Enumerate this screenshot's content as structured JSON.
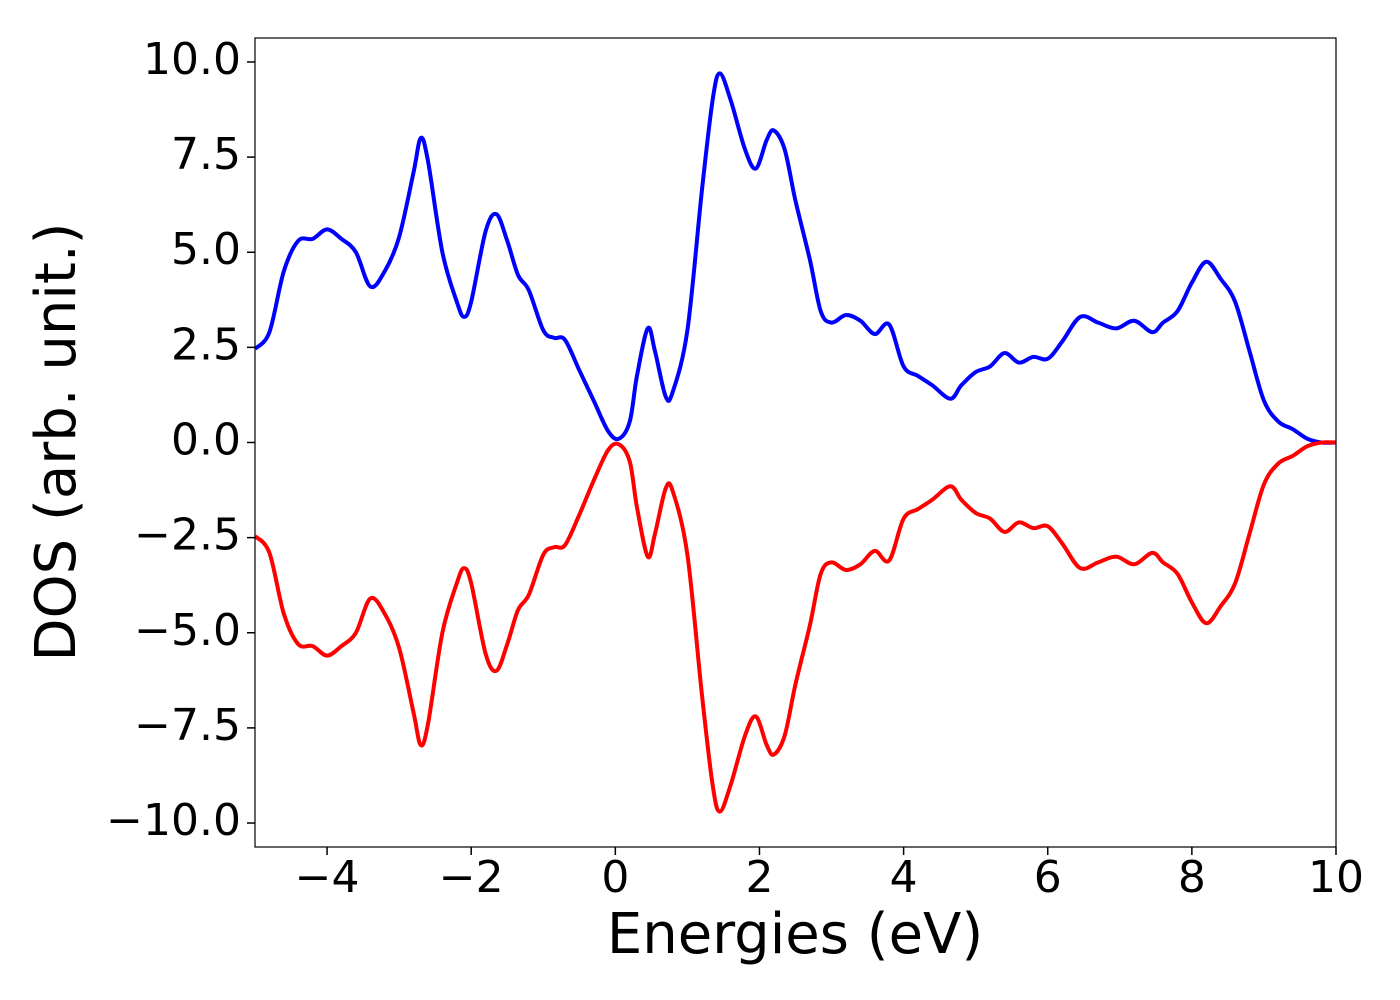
{
  "chart_data": {
    "type": "line",
    "xlabel": "Energies (eV)",
    "ylabel": "DOS (arb. unit.)",
    "x": [
      -5,
      -4.8,
      -4.6,
      -4.4,
      -4.2,
      -4.0,
      -3.8,
      -3.6,
      -3.4,
      -3.2,
      -3.0,
      -2.8,
      -2.7,
      -2.6,
      -2.4,
      -2.2,
      -2.1,
      -2.0,
      -1.8,
      -1.65,
      -1.5,
      -1.35,
      -1.2,
      -1.0,
      -0.85,
      -0.7,
      -0.5,
      -0.3,
      -0.1,
      0.05,
      0.2,
      0.3,
      0.45,
      0.55,
      0.7,
      0.8,
      1.0,
      1.2,
      1.35,
      1.45,
      1.6,
      1.8,
      1.95,
      2.1,
      2.2,
      2.35,
      2.5,
      2.7,
      2.85,
      3.0,
      3.2,
      3.4,
      3.6,
      3.8,
      4.0,
      4.2,
      4.4,
      4.65,
      4.8,
      5.0,
      5.2,
      5.4,
      5.6,
      5.8,
      6.0,
      6.2,
      6.45,
      6.7,
      6.95,
      7.2,
      7.45,
      7.6,
      7.8,
      8.0,
      8.2,
      8.4,
      8.6,
      8.8,
      9.0,
      9.2,
      9.4,
      9.6,
      9.8,
      10
    ],
    "series": [
      {
        "color": "#0000ff",
        "values": [
          2.46,
          2.9,
          4.5,
          5.3,
          5.35,
          5.6,
          5.35,
          5.0,
          4.1,
          4.5,
          5.4,
          7.1,
          8.0,
          7.4,
          5.0,
          3.7,
          3.3,
          3.7,
          5.55,
          6.0,
          5.3,
          4.4,
          4.0,
          2.95,
          2.75,
          2.7,
          1.9,
          1.1,
          0.3,
          0.1,
          0.55,
          1.75,
          3.0,
          2.4,
          1.2,
          1.35,
          2.95,
          6.6,
          9.0,
          9.7,
          9.0,
          7.7,
          7.2,
          7.95,
          8.2,
          7.7,
          6.35,
          4.8,
          3.45,
          3.15,
          3.35,
          3.2,
          2.85,
          3.1,
          2.0,
          1.75,
          1.5,
          1.15,
          1.5,
          1.85,
          2.0,
          2.35,
          2.1,
          2.25,
          2.2,
          2.65,
          3.3,
          3.15,
          3.0,
          3.2,
          2.9,
          3.15,
          3.45,
          4.2,
          4.75,
          4.3,
          3.7,
          2.4,
          1.1,
          0.55,
          0.35,
          0.1,
          0.0,
          0.0
        ]
      },
      {
        "color": "#ff0000",
        "values": [
          -2.46,
          -2.9,
          -4.5,
          -5.3,
          -5.35,
          -5.6,
          -5.35,
          -5.0,
          -4.1,
          -4.5,
          -5.4,
          -7.1,
          -7.95,
          -7.4,
          -5.0,
          -3.7,
          -3.3,
          -3.7,
          -5.55,
          -6.0,
          -5.3,
          -4.4,
          -4.0,
          -2.95,
          -2.75,
          -2.7,
          -1.9,
          -1.0,
          -0.2,
          -0.05,
          -0.5,
          -1.7,
          -3.0,
          -2.4,
          -1.2,
          -1.3,
          -2.95,
          -6.6,
          -9.0,
          -9.7,
          -9.0,
          -7.7,
          -7.2,
          -7.95,
          -8.2,
          -7.7,
          -6.35,
          -4.8,
          -3.45,
          -3.15,
          -3.35,
          -3.2,
          -2.85,
          -3.1,
          -2.0,
          -1.75,
          -1.5,
          -1.15,
          -1.5,
          -1.85,
          -2.0,
          -2.35,
          -2.1,
          -2.25,
          -2.2,
          -2.65,
          -3.3,
          -3.15,
          -3.0,
          -3.2,
          -2.9,
          -3.15,
          -3.45,
          -4.2,
          -4.75,
          -4.3,
          -3.7,
          -2.4,
          -1.1,
          -0.55,
          -0.35,
          -0.1,
          0.0,
          0.0
        ]
      }
    ],
    "xlim": [
      -5,
      10
    ],
    "xticks": [
      {
        "value": -4,
        "label": "−4"
      },
      {
        "value": -2,
        "label": "−2"
      },
      0,
      2,
      4,
      6,
      8,
      10
    ],
    "ylim": [
      -10.63,
      10.63
    ],
    "yticks": [
      {
        "value": -10,
        "label": "−10.0"
      },
      {
        "value": -7.5,
        "label": "−7.5"
      },
      {
        "value": -5,
        "label": "−5.0"
      },
      {
        "value": -2.5,
        "label": "−2.5"
      },
      {
        "value": 0,
        "label": "0.0"
      },
      2.5,
      {
        "value": 5,
        "label": "5.0"
      },
      7.5,
      {
        "value": 10,
        "label": "10.0"
      }
    ],
    "grid": false
  }
}
